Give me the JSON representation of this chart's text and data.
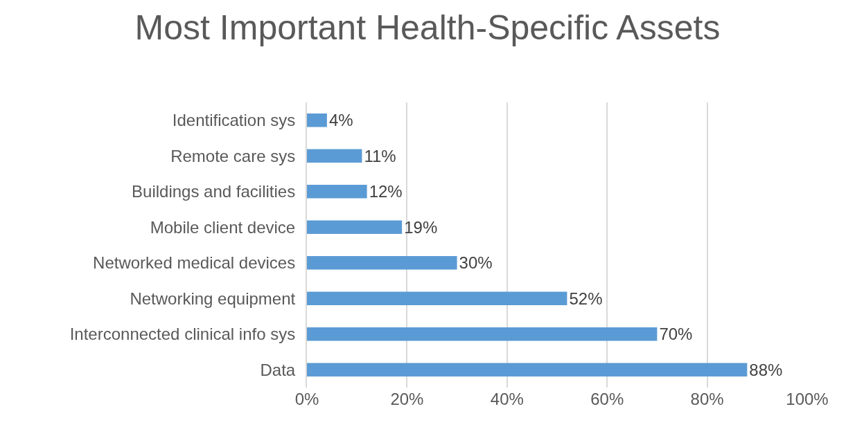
{
  "chart_data": {
    "type": "bar",
    "orientation": "horizontal",
    "title": "Most Important Health-Specific Assets",
    "categories": [
      "Identification sys",
      "Remote care sys",
      "Buildings and facilities",
      "Mobile client device",
      "Networked medical devices",
      "Networking equipment",
      "Interconnected clinical info sys",
      "Data"
    ],
    "values": [
      4,
      11,
      12,
      19,
      30,
      52,
      70,
      88
    ],
    "value_labels": [
      "4%",
      "11%",
      "12%",
      "19%",
      "30%",
      "52%",
      "70%",
      "88%"
    ],
    "color": "#5b9bd5",
    "xlim": [
      0,
      100
    ],
    "xticks": [
      {
        "value": 0,
        "label": "0%"
      },
      {
        "value": 20,
        "label": "20%"
      },
      {
        "value": 40,
        "label": "40%"
      },
      {
        "value": 60,
        "label": "60%"
      },
      {
        "value": 80,
        "label": "80%"
      },
      {
        "value": 100,
        "label": "100%"
      }
    ],
    "grid": "x"
  }
}
